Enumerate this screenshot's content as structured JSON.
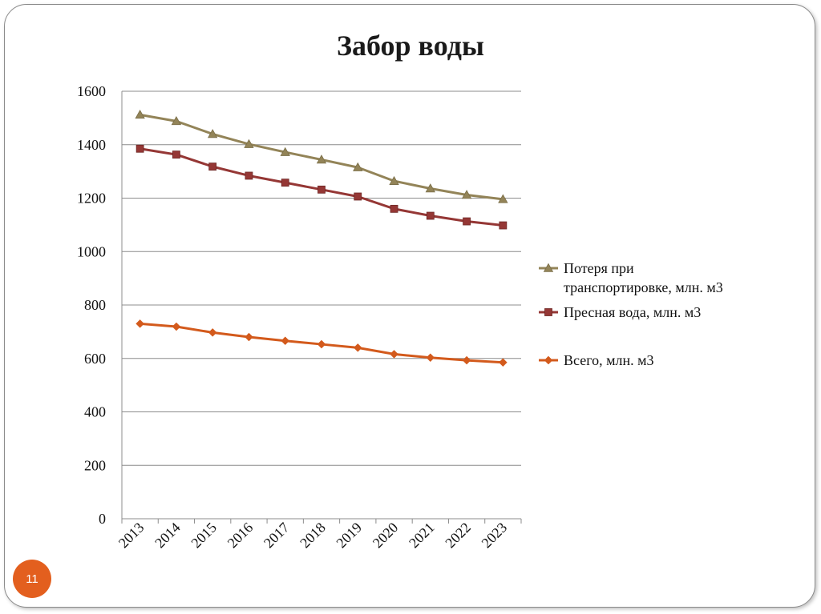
{
  "slide": {
    "title": "Забор воды",
    "page_number": "11"
  },
  "chart_data": {
    "type": "line",
    "title": "",
    "xlabel": "",
    "ylabel": "",
    "x": [
      "2013",
      "2014",
      "2015",
      "2016",
      "2017",
      "2018",
      "2019",
      "2020",
      "2021",
      "2022",
      "2023"
    ],
    "ylim": [
      0,
      1600
    ],
    "yticks": [
      "0",
      "200",
      "400",
      "600",
      "800",
      "1000",
      "1200",
      "1400",
      "1600"
    ],
    "grid": "horizontal",
    "legend_position": "right",
    "series": [
      {
        "name": "Потеря при транспортировке, млн. м3",
        "legend_lines": [
          "Потеря при",
          "транспортировке, млн. м3"
        ],
        "marker": "triangle",
        "color": "#938458",
        "values": [
          1512,
          1488,
          1440,
          1402,
          1372,
          1344,
          1315,
          1264,
          1236,
          1212,
          1196
        ]
      },
      {
        "name": "Пресная вода, млн. м3",
        "legend_lines": [
          "Пресная вода, млн. м3"
        ],
        "marker": "square",
        "color": "#953735",
        "values": [
          1385,
          1363,
          1318,
          1284,
          1258,
          1232,
          1206,
          1160,
          1134,
          1113,
          1098
        ]
      },
      {
        "name": "Всего, млн. м3",
        "legend_lines": [
          "Всего, млн. м3"
        ],
        "marker": "diamond",
        "color": "#d35a1c",
        "values": [
          730,
          719,
          697,
          680,
          666,
          653,
          640,
          616,
          603,
          593,
          585
        ]
      }
    ]
  }
}
